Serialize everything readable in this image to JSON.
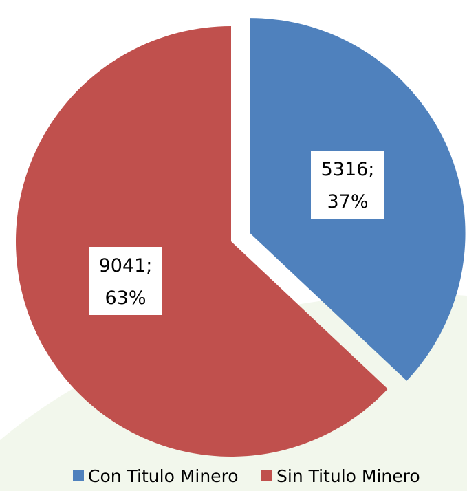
{
  "chart_data": {
    "type": "pie",
    "title": "",
    "categories": [
      "Con Titulo Minero",
      "Sin Titulo Minero"
    ],
    "values": [
      5316,
      9041
    ],
    "percent_labels": [
      "37%",
      "63%"
    ],
    "data_labels": [
      {
        "value": "5316;",
        "percent": "37%"
      },
      {
        "value": "9041;",
        "percent": "63%"
      }
    ],
    "colors": [
      "#4F81BD",
      "#C0504D"
    ],
    "exploded_slice": "Con Titulo Minero",
    "legend": {
      "position": "bottom",
      "entries": [
        "Con Titulo Minero",
        "Sin Titulo Minero"
      ]
    }
  },
  "background_color": "#FFFFFF",
  "watermark_color": "#F2F7EC"
}
